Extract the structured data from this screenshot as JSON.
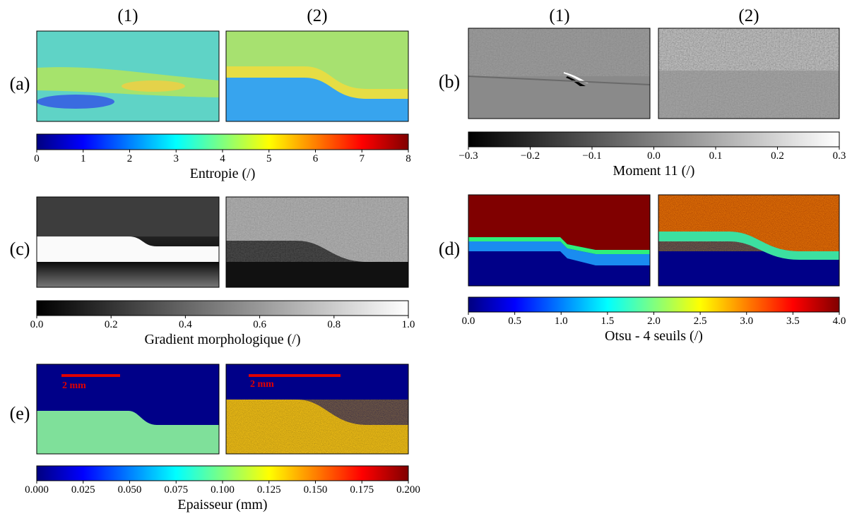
{
  "column_headers": [
    "(1)",
    "(2)"
  ],
  "scale_bar_label": "2 mm",
  "panels": [
    {
      "label": "(a)",
      "colorbar": {
        "label": "Entropie (/)",
        "colormap": "jet",
        "lim": [
          0,
          8
        ],
        "ticks": [
          0,
          1,
          2,
          3,
          4,
          5,
          6,
          7,
          8
        ]
      }
    },
    {
      "label": "(b)",
      "colorbar": {
        "label": "Moment 11 (/)",
        "colormap": "gray",
        "lim": [
          -0.3,
          0.3
        ],
        "ticks": [
          {
            "value": -0.3,
            "label": "−0.3"
          },
          {
            "value": -0.2,
            "label": "−0.2"
          },
          {
            "value": -0.1,
            "label": "−0.1"
          },
          {
            "value": 0,
            "label": "0.0"
          },
          0.1,
          0.2,
          0.3
        ]
      }
    },
    {
      "label": "(c)",
      "colorbar": {
        "label": "Gradient morphologique (/)",
        "colormap": "gray",
        "lim": [
          0,
          1
        ],
        "ticks": [
          {
            "value": 0,
            "label": "0.0"
          },
          0.2,
          0.4,
          0.6,
          0.8,
          {
            "value": 1,
            "label": "1.0"
          }
        ]
      }
    },
    {
      "label": "(d)",
      "colorbar": {
        "label": "Otsu - 4 seuils (/)",
        "colormap": "jet",
        "lim": [
          0,
          4
        ],
        "ticks": [
          {
            "value": 0,
            "label": "0.0"
          },
          0.5,
          {
            "value": 1,
            "label": "1.0"
          },
          1.5,
          {
            "value": 2,
            "label": "2.0"
          },
          2.5,
          {
            "value": 3,
            "label": "3.0"
          },
          3.5,
          {
            "value": 4,
            "label": "4.0"
          }
        ]
      }
    },
    {
      "label": "(e)",
      "colorbar": {
        "label": "Epaisseur (mm)",
        "colormap": "jet",
        "lim": [
          0,
          0.2
        ],
        "ticks": [
          {
            "value": 0,
            "label": "0.000"
          },
          0.025,
          {
            "value": 0.05,
            "label": "0.050"
          },
          0.075,
          {
            "value": 0.1,
            "label": "0.100"
          },
          0.125,
          {
            "value": 0.15,
            "label": "0.150"
          },
          0.175,
          {
            "value": 0.2,
            "label": "0.200"
          }
        ]
      }
    }
  ]
}
